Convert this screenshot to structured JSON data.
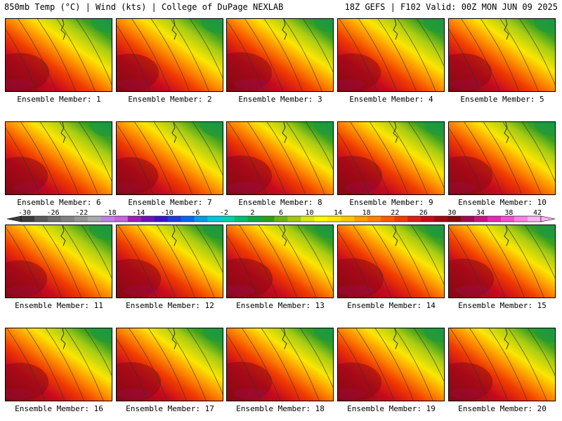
{
  "header": {
    "left_title": "850mb Temp (°C) | Wind (kts) | College of DuPage NEXLAB",
    "right_title": "18Z GEFS | F102 Valid: 00Z MON JUN 09 2025"
  },
  "member_label_prefix": "Ensemble Member: ",
  "members": [
    {
      "label": "Ensemble Member: 1",
      "warmth": 0.65
    },
    {
      "label": "Ensemble Member: 2",
      "warmth": 0.55
    },
    {
      "label": "Ensemble Member: 3",
      "warmth": 0.75
    },
    {
      "label": "Ensemble Member: 4",
      "warmth": 0.6
    },
    {
      "label": "Ensemble Member: 5",
      "warmth": 0.6
    },
    {
      "label": "Ensemble Member: 6",
      "warmth": 0.55
    },
    {
      "label": "Ensemble Member: 7",
      "warmth": 0.5
    },
    {
      "label": "Ensemble Member: 8",
      "warmth": 0.75
    },
    {
      "label": "Ensemble Member: 9",
      "warmth": 0.7
    },
    {
      "label": "Ensemble Member: 10",
      "warmth": 0.65
    },
    {
      "label": "Ensemble Member: 11",
      "warmth": 0.5
    },
    {
      "label": "Ensemble Member: 12",
      "warmth": 0.7
    },
    {
      "label": "Ensemble Member: 13",
      "warmth": 0.8
    },
    {
      "label": "Ensemble Member: 14",
      "warmth": 0.8
    },
    {
      "label": "Ensemble Member: 15",
      "warmth": 0.75
    },
    {
      "label": "Ensemble Member: 16",
      "warmth": 0.6
    },
    {
      "label": "Ensemble Member: 17",
      "warmth": 0.7
    },
    {
      "label": "Ensemble Member: 18",
      "warmth": 0.75
    },
    {
      "label": "Ensemble Member: 19",
      "warmth": 0.65
    },
    {
      "label": "Ensemble Member: 20",
      "warmth": 0.65
    }
  ],
  "colorbar": {
    "ticks": [
      "-30",
      "-26",
      "-22",
      "-18",
      "-14",
      "-10",
      "-6",
      "-2",
      "2",
      "6",
      "10",
      "14",
      "18",
      "22",
      "26",
      "30",
      "34",
      "38",
      "42"
    ],
    "colors": [
      "#3c3c3c",
      "#5a5a5a",
      "#6e6e6e",
      "#828282",
      "#969696",
      "#aaaaaa",
      "#be82e6",
      "#c864dc",
      "#a01eb4",
      "#6e14b4",
      "#3c14c8",
      "#1e3cdc",
      "#0a64f0",
      "#009ee6",
      "#00c8dc",
      "#00d2aa",
      "#00be6e",
      "#10a83c",
      "#2ca01e",
      "#6eb414",
      "#a0c814",
      "#dce614",
      "#fafa00",
      "#ffe600",
      "#ffc800",
      "#ffa000",
      "#ff8200",
      "#ff5a00",
      "#f03c00",
      "#dc1e14",
      "#c80a1e",
      "#a00a14",
      "#820a0a",
      "#a00a50",
      "#c81482",
      "#e628b4",
      "#f050d2",
      "#fa82e6",
      "#fcb4f0"
    ]
  }
}
